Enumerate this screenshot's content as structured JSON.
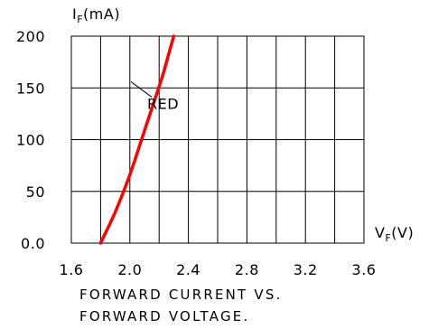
{
  "chart_data": {
    "type": "line",
    "title": "FORWARD CURRENT VS.",
    "subtitle": "FORWARD VOLTAGE.",
    "ylabel": {
      "main": "I",
      "sub": "F",
      "unit": "(mA)"
    },
    "xlabel": {
      "main": "V",
      "sub": "F",
      "unit": "(V)"
    },
    "xlim": [
      1.6,
      3.6
    ],
    "ylim": [
      0,
      200
    ],
    "x_ticks": [
      1.6,
      2.0,
      2.4,
      2.8,
      3.2,
      3.6
    ],
    "x_tick_labels": [
      "1.6",
      "2.0",
      "2.4",
      "2.8",
      "3.2",
      "3.6"
    ],
    "y_ticks": [
      0,
      50,
      100,
      150,
      200
    ],
    "y_tick_labels": [
      "0.0",
      "50",
      "100",
      "150",
      "200"
    ],
    "grid": true,
    "grid_x_step": 0.2,
    "series": [
      {
        "name": "RED",
        "color": "#ff0000",
        "x": [
          1.8,
          1.9,
          2.0,
          2.08,
          2.15,
          2.22,
          2.27,
          2.3
        ],
        "y": [
          0,
          30,
          66,
          100,
          130,
          160,
          185,
          200
        ]
      }
    ],
    "annotations": [
      {
        "text": "RED",
        "points_to_x": 2.23,
        "points_to_y": 128
      }
    ]
  }
}
